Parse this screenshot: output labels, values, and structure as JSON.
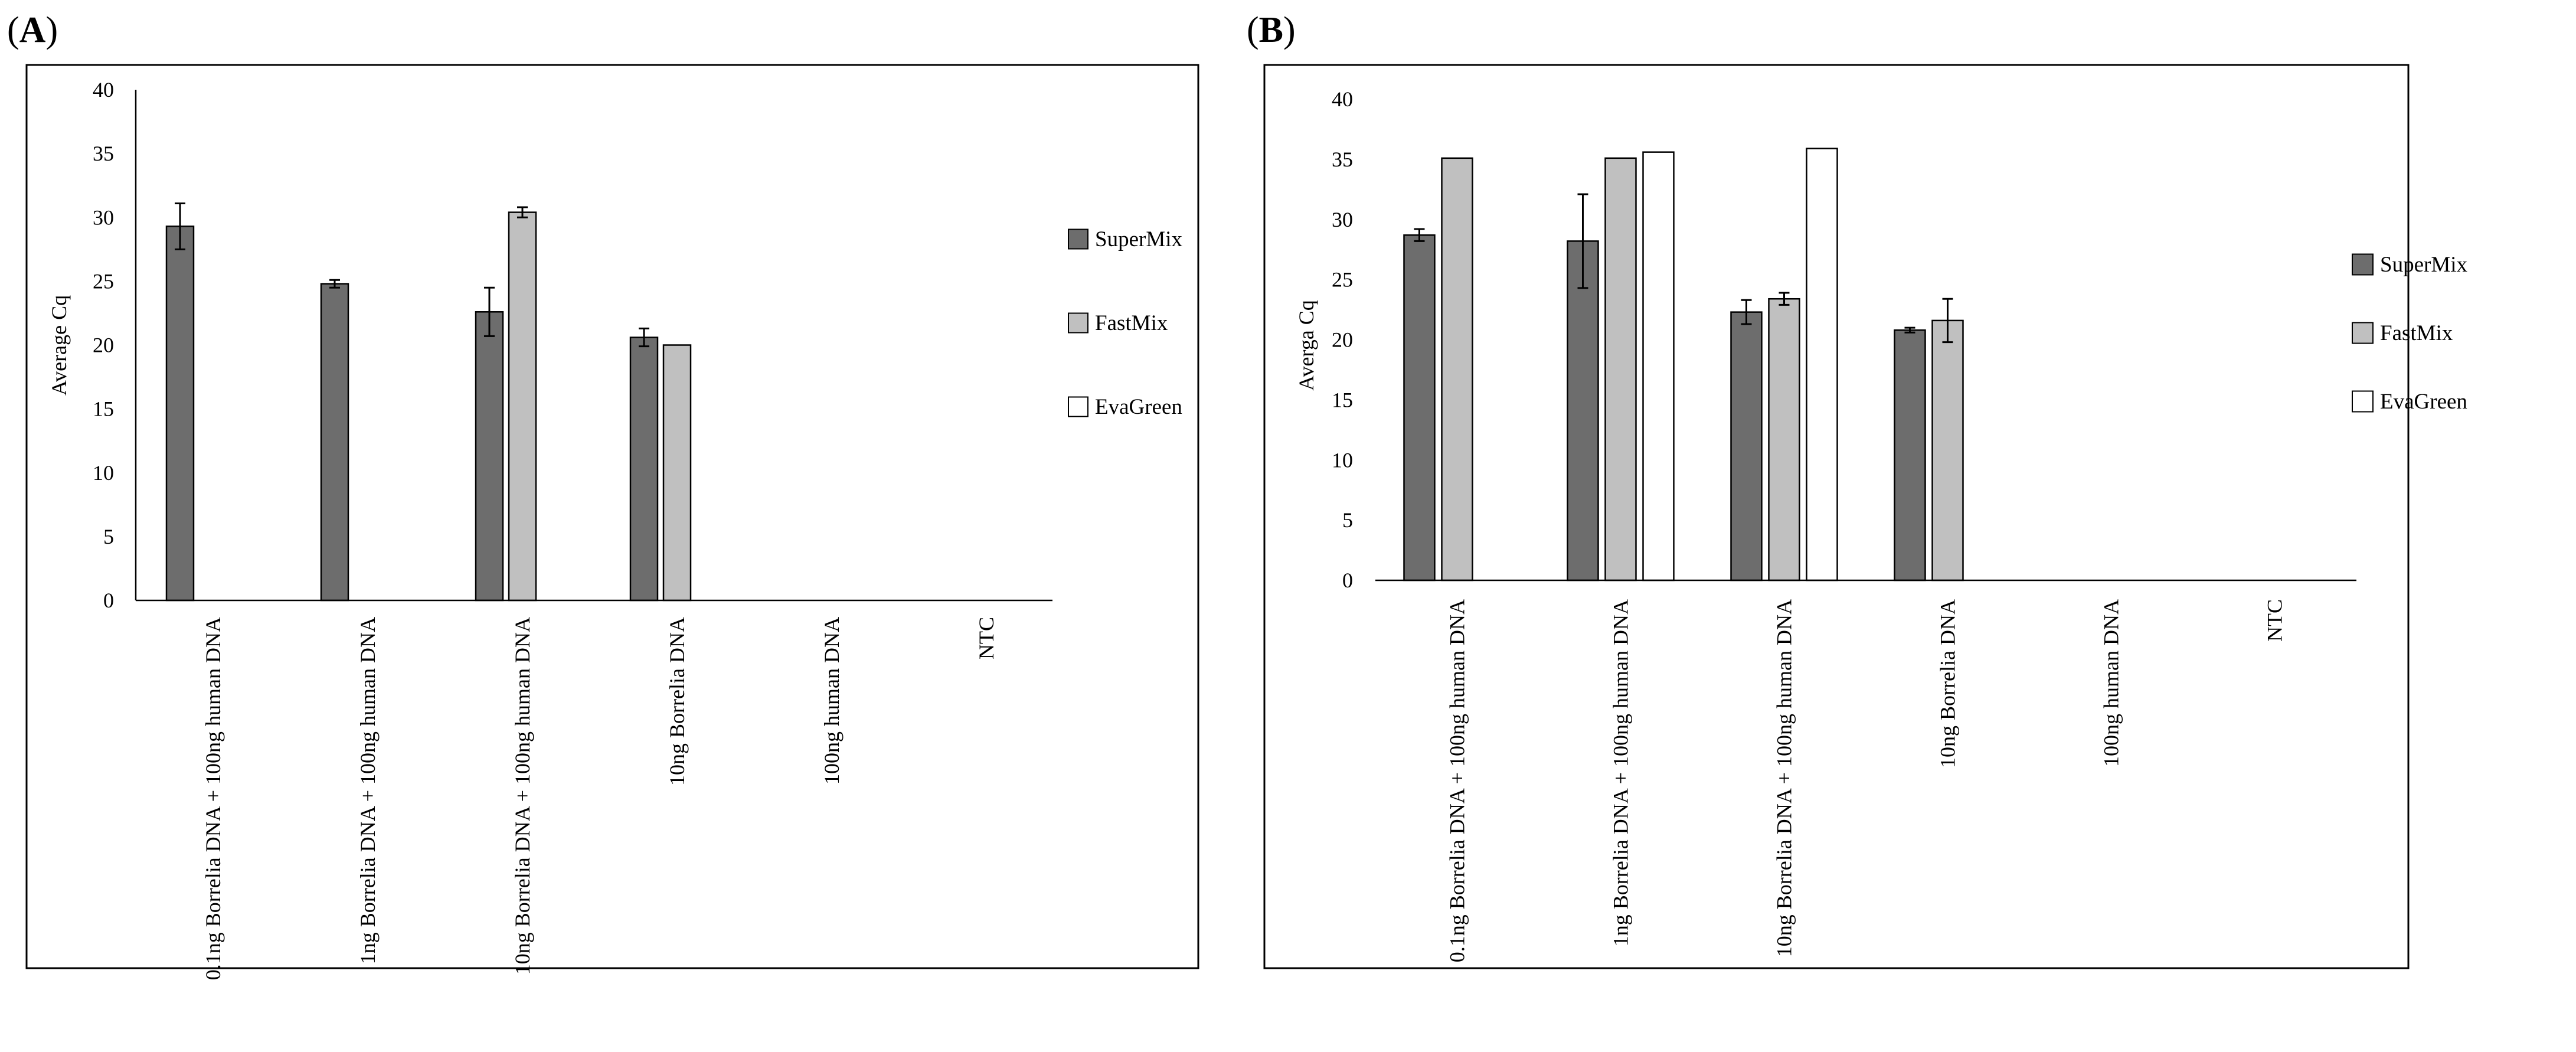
{
  "panels": [
    {
      "id": "A",
      "label_text": "(",
      "letter": "A",
      "label_close": ")"
    },
    {
      "id": "B",
      "label_text": "(",
      "letter": "B",
      "label_close": ")"
    }
  ],
  "colors": {
    "SuperMix": "#6d6d6d",
    "FastMix": "#c0c0c0",
    "EvaGreen": "#ffffff",
    "outline": "#000000"
  },
  "chart_data": [
    {
      "panel": "A",
      "type": "bar",
      "title": "",
      "xlabel": "",
      "ylabel": "Average Cq",
      "ylim": [
        0,
        40
      ],
      "yticks": [
        0,
        5,
        10,
        15,
        20,
        25,
        30,
        35,
        40
      ],
      "grid": false,
      "legend_position": "right",
      "categories": [
        "0.1ng Borrelia DNA + 100ng human DNA",
        "1ng Borrelia DNA + 100ng human DNA",
        "10ng Borrelia DNA + 100ng human DNA",
        "10ng Borrelia DNA",
        "100ng human DNA",
        "NTC"
      ],
      "series": [
        {
          "name": "SuperMix",
          "values": [
            29.3,
            24.8,
            22.6,
            20.6,
            0,
            0
          ],
          "errors": [
            1.8,
            0.3,
            1.9,
            0.7,
            0,
            0
          ]
        },
        {
          "name": "FastMix",
          "values": [
            0,
            0,
            30.4,
            20.0,
            0,
            0
          ],
          "errors": [
            0,
            0,
            0.4,
            0,
            0,
            0
          ]
        },
        {
          "name": "EvaGreen",
          "values": [
            0,
            0,
            0,
            0,
            0,
            0
          ],
          "errors": [
            0,
            0,
            0,
            0,
            0,
            0
          ]
        }
      ]
    },
    {
      "panel": "B",
      "type": "bar",
      "title": "",
      "xlabel": "",
      "ylabel": "Averga Cq",
      "ylim": [
        0,
        40
      ],
      "yticks": [
        0,
        5,
        10,
        15,
        20,
        25,
        30,
        35,
        40
      ],
      "grid": false,
      "legend_position": "right",
      "categories": [
        "0.1ng Borrelia DNA + 100ng human DNA",
        "1ng Borrelia DNA + 100ng human DNA",
        "10ng Borrelia DNA + 100ng human DNA",
        "10ng Borrelia DNA",
        "100ng human DNA",
        "NTC"
      ],
      "series": [
        {
          "name": "SuperMix",
          "values": [
            28.7,
            28.2,
            22.3,
            20.8,
            0,
            0
          ],
          "errors": [
            0.5,
            3.9,
            1.0,
            0.2,
            0,
            0
          ]
        },
        {
          "name": "FastMix",
          "values": [
            35.1,
            35.1,
            23.4,
            21.6,
            0,
            0
          ],
          "errors": [
            0,
            0,
            0.5,
            1.8,
            0,
            0
          ]
        },
        {
          "name": "EvaGreen",
          "values": [
            0,
            35.6,
            35.9,
            0,
            0,
            0
          ],
          "errors": [
            0,
            0,
            0,
            0,
            0,
            0
          ]
        }
      ]
    }
  ]
}
